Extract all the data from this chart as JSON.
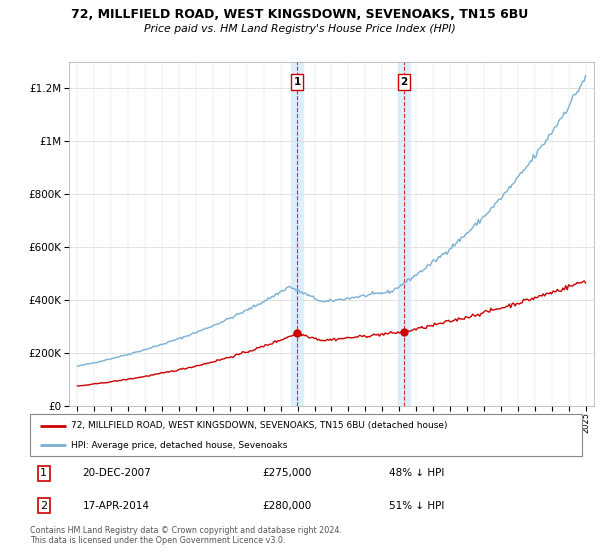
{
  "title": "72, MILLFIELD ROAD, WEST KINGSDOWN, SEVENOAKS, TN15 6BU",
  "subtitle": "Price paid vs. HM Land Registry's House Price Index (HPI)",
  "legend_label_red": "72, MILLFIELD ROAD, WEST KINGSDOWN, SEVENOAKS, TN15 6BU (detached house)",
  "legend_label_blue": "HPI: Average price, detached house, Sevenoaks",
  "footer1": "Contains HM Land Registry data © Crown copyright and database right 2024.",
  "footer2": "This data is licensed under the Open Government Licence v3.0.",
  "annotation1": {
    "num": "1",
    "date": "20-DEC-2007",
    "price": "£275,000",
    "pct": "48% ↓ HPI",
    "year": 2007.97
  },
  "annotation2": {
    "num": "2",
    "date": "17-APR-2014",
    "price": "£280,000",
    "pct": "51% ↓ HPI",
    "year": 2014.29
  },
  "ylim": [
    0,
    1300000
  ],
  "xlim_start": 1994.5,
  "xlim_end": 2025.5,
  "red_color": "#cc0000",
  "blue_color": "#7ab0d4",
  "shade_color": "#ddeeff",
  "ann_marker_color": "#cc0000",
  "grid_color": "#dddddd",
  "spine_color": "#aaaaaa",
  "bg_color": "#ffffff",
  "sale1_price": 275000,
  "sale2_price": 280000
}
